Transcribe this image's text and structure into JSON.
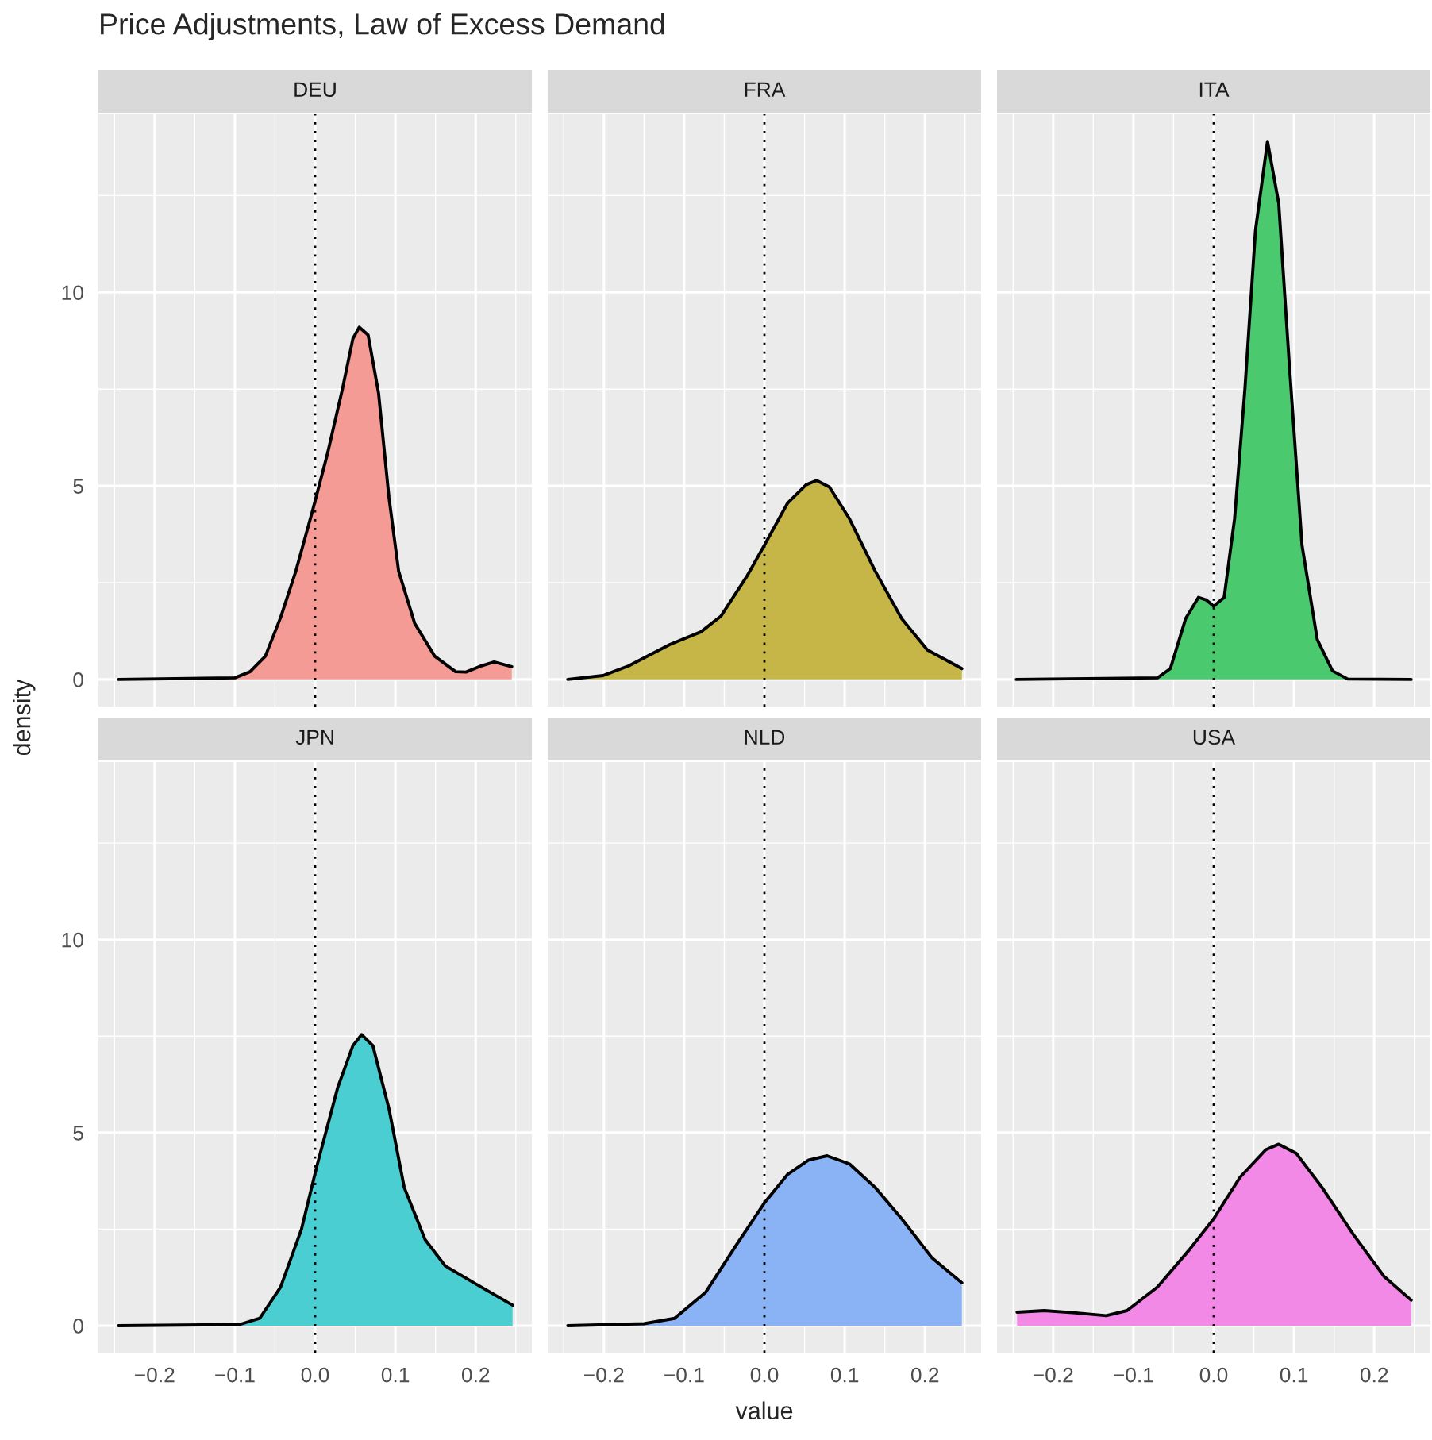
{
  "chart_data": [
    {
      "type": "area",
      "title": "DEU",
      "ylabel": "density",
      "annotations": [
        "Price Adjustments, Law of Excess Demand"
      ],
      "color": "#f59b95",
      "tick_labels": "y",
      "grid": true,
      "xlim": [
        -0.27,
        0.27
      ],
      "xticks": [
        -0.2,
        -0.1,
        0,
        0.1,
        0.2
      ],
      "ylim": [
        -0.7,
        14.6
      ],
      "yticks": [
        0,
        5,
        10
      ],
      "ref_lines": [
        {
          "axis": "x",
          "value": 0,
          "line_style": "dotted",
          "color": "#000000"
        }
      ],
      "x": [
        -0.245,
        -0.1,
        -0.081,
        -0.062,
        -0.043,
        -0.024,
        -0.004,
        0.015,
        0.034,
        0.047,
        0.055,
        0.066,
        0.079,
        0.092,
        0.104,
        0.124,
        0.149,
        0.175,
        0.188,
        0.207,
        0.223,
        0.245
      ],
      "values": [
        0,
        0.04,
        0.2,
        0.6,
        1.6,
        2.8,
        4.3,
        5.8,
        7.5,
        8.8,
        9.1,
        8.9,
        7.4,
        4.7,
        2.8,
        1.45,
        0.6,
        0.2,
        0.19,
        0.35,
        0.45,
        0.33
      ]
    },
    {
      "type": "area",
      "title": "FRA",
      "color": "#c6b647",
      "tick_labels": false,
      "grid": true,
      "xlim": [
        -0.27,
        0.27
      ],
      "xticks": [
        -0.2,
        -0.1,
        0,
        0.1,
        0.2
      ],
      "ylim": [
        -0.7,
        14.6
      ],
      "yticks": [
        0,
        5,
        10
      ],
      "ref_lines": [
        {
          "axis": "x",
          "value": 0,
          "line_style": "dotted",
          "color": "#000000"
        }
      ],
      "x": [
        -0.245,
        -0.201,
        -0.169,
        -0.118,
        -0.079,
        -0.054,
        -0.022,
        0,
        0.029,
        0.052,
        0.065,
        0.081,
        0.106,
        0.138,
        0.171,
        0.203,
        0.246
      ],
      "values": [
        0,
        0.1,
        0.35,
        0.9,
        1.23,
        1.64,
        2.66,
        3.47,
        4.56,
        5.03,
        5.14,
        4.97,
        4.15,
        2.8,
        1.57,
        0.76,
        0.28
      ]
    },
    {
      "type": "area",
      "title": "ITA",
      "color": "#4ac96e",
      "tick_labels": false,
      "grid": true,
      "xlim": [
        -0.27,
        0.27
      ],
      "xticks": [
        -0.2,
        -0.1,
        0,
        0.1,
        0.2
      ],
      "ylim": [
        -0.7,
        14.6
      ],
      "yticks": [
        0,
        5,
        10
      ],
      "ref_lines": [
        {
          "axis": "x",
          "value": 0,
          "line_style": "dotted",
          "color": "#000000"
        }
      ],
      "x": [
        -0.246,
        -0.07,
        -0.054,
        -0.035,
        -0.019,
        -0.009,
        0,
        0.013,
        0.026,
        0.039,
        0.052,
        0.067,
        0.081,
        0.094,
        0.11,
        0.129,
        0.148,
        0.167,
        0.246
      ],
      "values": [
        0,
        0.04,
        0.28,
        1.57,
        2.12,
        2.05,
        1.89,
        2.12,
        4.15,
        7.54,
        11.6,
        13.9,
        12.3,
        8.2,
        3.47,
        1.03,
        0.22,
        0.01,
        0
      ]
    },
    {
      "type": "area",
      "title": "JPN",
      "color": "#4aced1",
      "grid": true,
      "xlim": [
        -0.27,
        0.27
      ],
      "xticks": [
        {
          "value": -0.2,
          "label": "−0.2"
        },
        {
          "value": -0.1,
          "label": "−0.1"
        },
        {
          "value": 0,
          "label": "0.0"
        },
        {
          "value": 0.1,
          "label": "0.1"
        },
        {
          "value": 0.2,
          "label": "0.2"
        }
      ],
      "ylim": [
        -0.7,
        14.6
      ],
      "yticks": [
        0,
        5,
        10
      ],
      "ref_lines": [
        {
          "axis": "x",
          "value": 0,
          "line_style": "dotted",
          "color": "#000000"
        }
      ],
      "x": [
        -0.245,
        -0.094,
        -0.069,
        -0.043,
        -0.017,
        0.002,
        0.028,
        0.047,
        0.058,
        0.072,
        0.092,
        0.111,
        0.137,
        0.162,
        0.201,
        0.246
      ],
      "values": [
        0,
        0.03,
        0.19,
        1.0,
        2.5,
        4.12,
        6.16,
        7.25,
        7.54,
        7.25,
        5.62,
        3.58,
        2.23,
        1.55,
        1.07,
        0.53
      ]
    },
    {
      "type": "area",
      "title": "NLD",
      "xlabel": "value",
      "color": "#8ab3f6",
      "tick_labels": "x",
      "grid": true,
      "xlim": [
        -0.27,
        0.27
      ],
      "xticks": [
        {
          "value": -0.2,
          "label": "−0.2"
        },
        {
          "value": -0.1,
          "label": "−0.1"
        },
        {
          "value": 0,
          "label": "0.0"
        },
        {
          "value": 0.1,
          "label": "0.1"
        },
        {
          "value": 0.2,
          "label": "0.2"
        }
      ],
      "ylim": [
        -0.7,
        14.6
      ],
      "yticks": [
        0,
        5,
        10
      ],
      "ref_lines": [
        {
          "axis": "x",
          "value": 0,
          "line_style": "dotted",
          "color": "#000000"
        }
      ],
      "x": [
        -0.245,
        -0.15,
        -0.112,
        -0.073,
        -0.035,
        0,
        0.029,
        0.055,
        0.078,
        0.106,
        0.138,
        0.171,
        0.209,
        0.246
      ],
      "values": [
        0,
        0.05,
        0.19,
        0.87,
        2.09,
        3.18,
        3.92,
        4.29,
        4.4,
        4.19,
        3.58,
        2.77,
        1.75,
        1.11
      ]
    },
    {
      "type": "area",
      "title": "USA",
      "color": "#f289e6",
      "tick_labels": "x",
      "grid": true,
      "xlim": [
        -0.27,
        0.27
      ],
      "xticks": [
        {
          "value": -0.2,
          "label": "−0.2"
        },
        {
          "value": -0.1,
          "label": "−0.1"
        },
        {
          "value": 0,
          "label": "0.0"
        },
        {
          "value": 0.1,
          "label": "0.1"
        },
        {
          "value": 0.2,
          "label": "0.2"
        }
      ],
      "ylim": [
        -0.7,
        14.6
      ],
      "yticks": [
        0,
        5,
        10
      ],
      "ref_lines": [
        {
          "axis": "x",
          "value": 0,
          "line_style": "dotted",
          "color": "#000000"
        }
      ],
      "x": [
        -0.245,
        -0.211,
        -0.172,
        -0.134,
        -0.108,
        -0.07,
        -0.031,
        0,
        0.033,
        0.065,
        0.081,
        0.103,
        0.135,
        0.174,
        0.212,
        0.246
      ],
      "values": [
        0.35,
        0.39,
        0.33,
        0.26,
        0.39,
        1.0,
        1.95,
        2.77,
        3.85,
        4.56,
        4.7,
        4.46,
        3.58,
        2.36,
        1.28,
        0.66
      ]
    }
  ]
}
